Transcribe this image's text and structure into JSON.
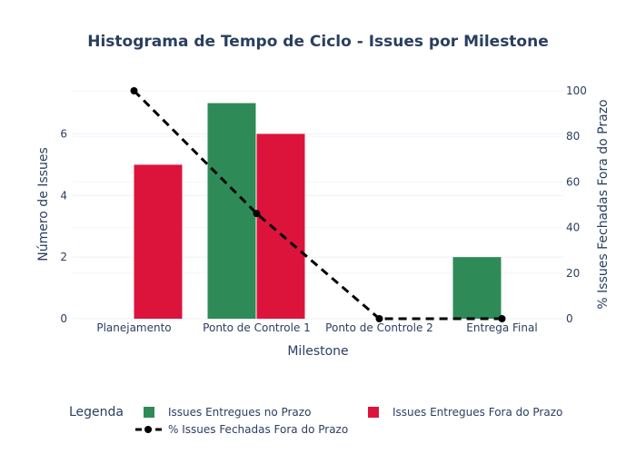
{
  "chart_data": {
    "type": "bar",
    "title": "Histograma de Tempo de Ciclo - Issues por Milestone",
    "xlabel": "Milestone",
    "ylabel": "Número de Issues",
    "y2label": "% Issues Fechadas Fora do Prazo",
    "categories": [
      "Planejamento",
      "Ponto de Controle 1",
      "Ponto de Controle 2",
      "Entrega Final"
    ],
    "ylim": [
      0,
      7.4
    ],
    "y2lim": [
      0,
      100
    ],
    "yticks": [
      "0",
      "2",
      "4",
      "6"
    ],
    "y2ticks": [
      "0",
      "20",
      "40",
      "60",
      "80",
      "100"
    ],
    "grid": true,
    "series": [
      {
        "name": "Issues Entregues no Prazo",
        "kind": "bar",
        "axis": "y",
        "color": "#2e8b57",
        "values": [
          0,
          7,
          0,
          2
        ]
      },
      {
        "name": "Issues Entregues Fora do Prazo",
        "kind": "bar",
        "axis": "y",
        "color": "#dc143c",
        "values": [
          5,
          6,
          0,
          0
        ]
      },
      {
        "name": "% Issues Fechadas Fora do Prazo",
        "kind": "line",
        "axis": "y2",
        "color": "#000000",
        "style": "dashed",
        "values": [
          100,
          46.15,
          0,
          0
        ]
      }
    ],
    "legend": {
      "title": "Legenda",
      "placement": "bottom",
      "items": [
        "Issues Entregues no Prazo",
        "Issues Entregues Fora do Prazo",
        "% Issues Fechadas Fora do Prazo"
      ]
    }
  }
}
